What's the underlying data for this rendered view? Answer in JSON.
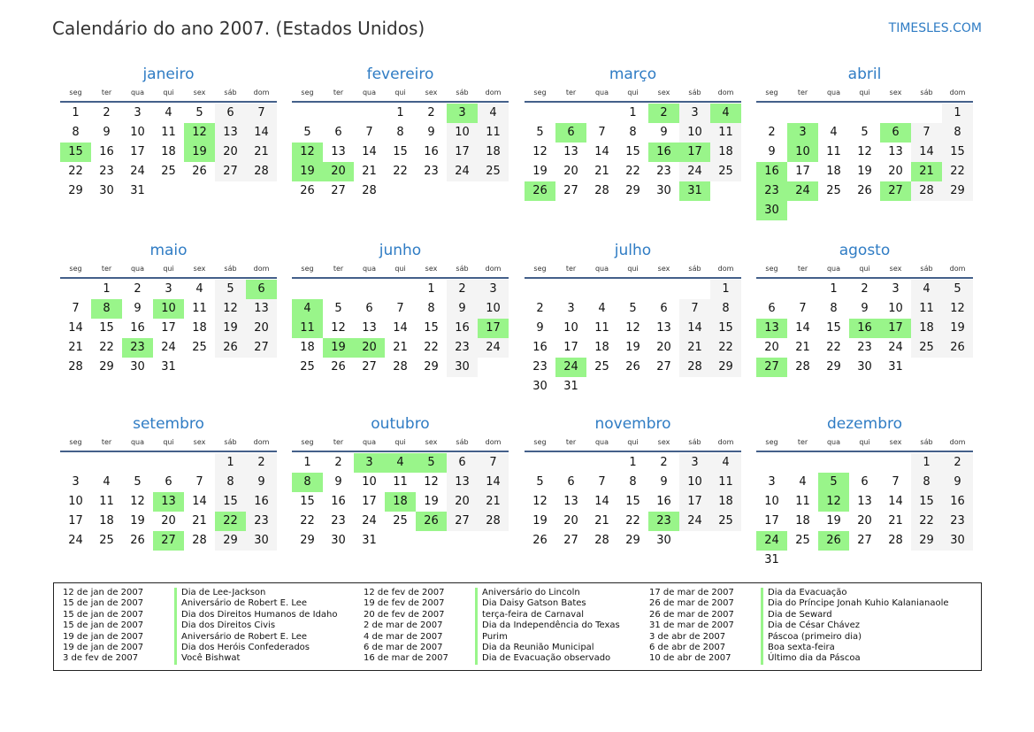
{
  "header": {
    "title": "Calendário do ano 2007. (Estados Unidos)",
    "brand": "TIMESLES.COM"
  },
  "year": 2007,
  "weekdays": [
    "seg",
    "ter",
    "qua",
    "qui",
    "sex",
    "sáb",
    "dom"
  ],
  "colors": {
    "holiday": "#99f58a",
    "weekend": "#f4f4f4",
    "month_title": "#2f7cc4"
  },
  "months": [
    {
      "name": "janeiro",
      "holidays": [
        12,
        15,
        19
      ]
    },
    {
      "name": "fevereiro",
      "holidays": [
        3,
        12,
        19,
        20
      ]
    },
    {
      "name": "março",
      "holidays": [
        2,
        4,
        6,
        16,
        17,
        26,
        31
      ]
    },
    {
      "name": "abril",
      "holidays": [
        3,
        6,
        10,
        16,
        21,
        23,
        24,
        27,
        30
      ]
    },
    {
      "name": "maio",
      "holidays": [
        6,
        8,
        10,
        23
      ]
    },
    {
      "name": "junho",
      "holidays": [
        4,
        11,
        17,
        19,
        20
      ]
    },
    {
      "name": "julho",
      "holidays": [
        24
      ]
    },
    {
      "name": "agosto",
      "holidays": [
        13,
        16,
        17,
        27
      ]
    },
    {
      "name": "setembro",
      "holidays": [
        13,
        22,
        27
      ]
    },
    {
      "name": "outubro",
      "holidays": [
        3,
        4,
        5,
        8,
        18,
        26
      ]
    },
    {
      "name": "novembro",
      "holidays": [
        23
      ]
    },
    {
      "name": "dezembro",
      "holidays": [
        5,
        12,
        24,
        26
      ]
    }
  ],
  "legend": [
    {
      "date": "12 de jan de 2007",
      "name": "Dia de Lee-Jackson"
    },
    {
      "date": "15 de jan de 2007",
      "name": "Aniversário de Robert E. Lee"
    },
    {
      "date": "15 de jan de 2007",
      "name": "Dia dos Direitos Humanos de Idaho"
    },
    {
      "date": "15 de jan de 2007",
      "name": "Dia dos Direitos Civis"
    },
    {
      "date": "19 de jan de 2007",
      "name": "Aniversário de Robert E. Lee"
    },
    {
      "date": "19 de jan de 2007",
      "name": "Dia dos Heróis Confederados"
    },
    {
      "date": "3 de fev de 2007",
      "name": "Você Bishwat"
    },
    {
      "date": "12 de fev de 2007",
      "name": "Aniversário do Lincoln"
    },
    {
      "date": "19 de fev de 2007",
      "name": "Dia Daisy Gatson Bates"
    },
    {
      "date": "20 de fev de 2007",
      "name": "terça-feira de Carnaval"
    },
    {
      "date": "2 de mar de 2007",
      "name": "Dia da Independência do Texas"
    },
    {
      "date": "4 de mar de 2007",
      "name": "Purim"
    },
    {
      "date": "6 de mar de 2007",
      "name": "Dia da Reunião Municipal"
    },
    {
      "date": "16 de mar de 2007",
      "name": "Dia de Evacuação observado"
    },
    {
      "date": "17 de mar de 2007",
      "name": "Dia da Evacuação"
    },
    {
      "date": "26 de mar de 2007",
      "name": "Dia do Príncipe Jonah Kuhio Kalanianaole"
    },
    {
      "date": "26 de mar de 2007",
      "name": "Dia de Seward"
    },
    {
      "date": "31 de mar de 2007",
      "name": "Dia de César Chávez"
    },
    {
      "date": "3 de abr de 2007",
      "name": "Páscoa (primeiro dia)"
    },
    {
      "date": "6 de abr de 2007",
      "name": "Boa sexta-feira"
    },
    {
      "date": "10 de abr de 2007",
      "name": "Último dia da Páscoa"
    }
  ]
}
